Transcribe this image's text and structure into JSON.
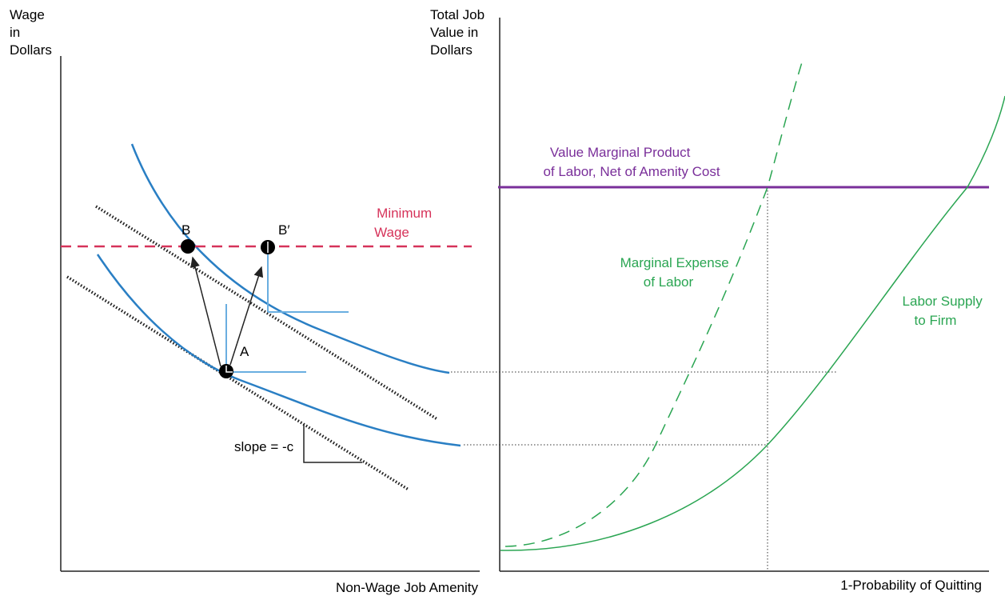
{
  "left_panel": {
    "y_axis_label": [
      "Wage",
      "in",
      "Dollars"
    ],
    "x_axis_label": "Non-Wage Job Amenity",
    "minimum_wage_label": [
      "Minimum",
      "Wage"
    ],
    "point_b": "B",
    "point_b_prime": "B′",
    "point_a": "A",
    "slope_label": "slope = -c"
  },
  "right_panel": {
    "y_axis_label": [
      "Total Job",
      "Value in",
      "Dollars"
    ],
    "x_axis_label": "1-Probability of Quitting",
    "vmp_label": [
      "Value Marginal Product",
      "of Labor, Net of Amenity Cost"
    ],
    "me_label": [
      "Marginal Expense",
      "of Labor"
    ],
    "supply_label": [
      "Labor Supply",
      "to Firm"
    ]
  },
  "colors": {
    "axis": "#222222",
    "indifference_curve": "#2a7fc4",
    "minimum_wage": "#d6335a",
    "vmp": "#7a2f9a",
    "supply": "#2aa552",
    "marginal_expense": "#2aa552",
    "guide": "#6aaee0"
  }
}
